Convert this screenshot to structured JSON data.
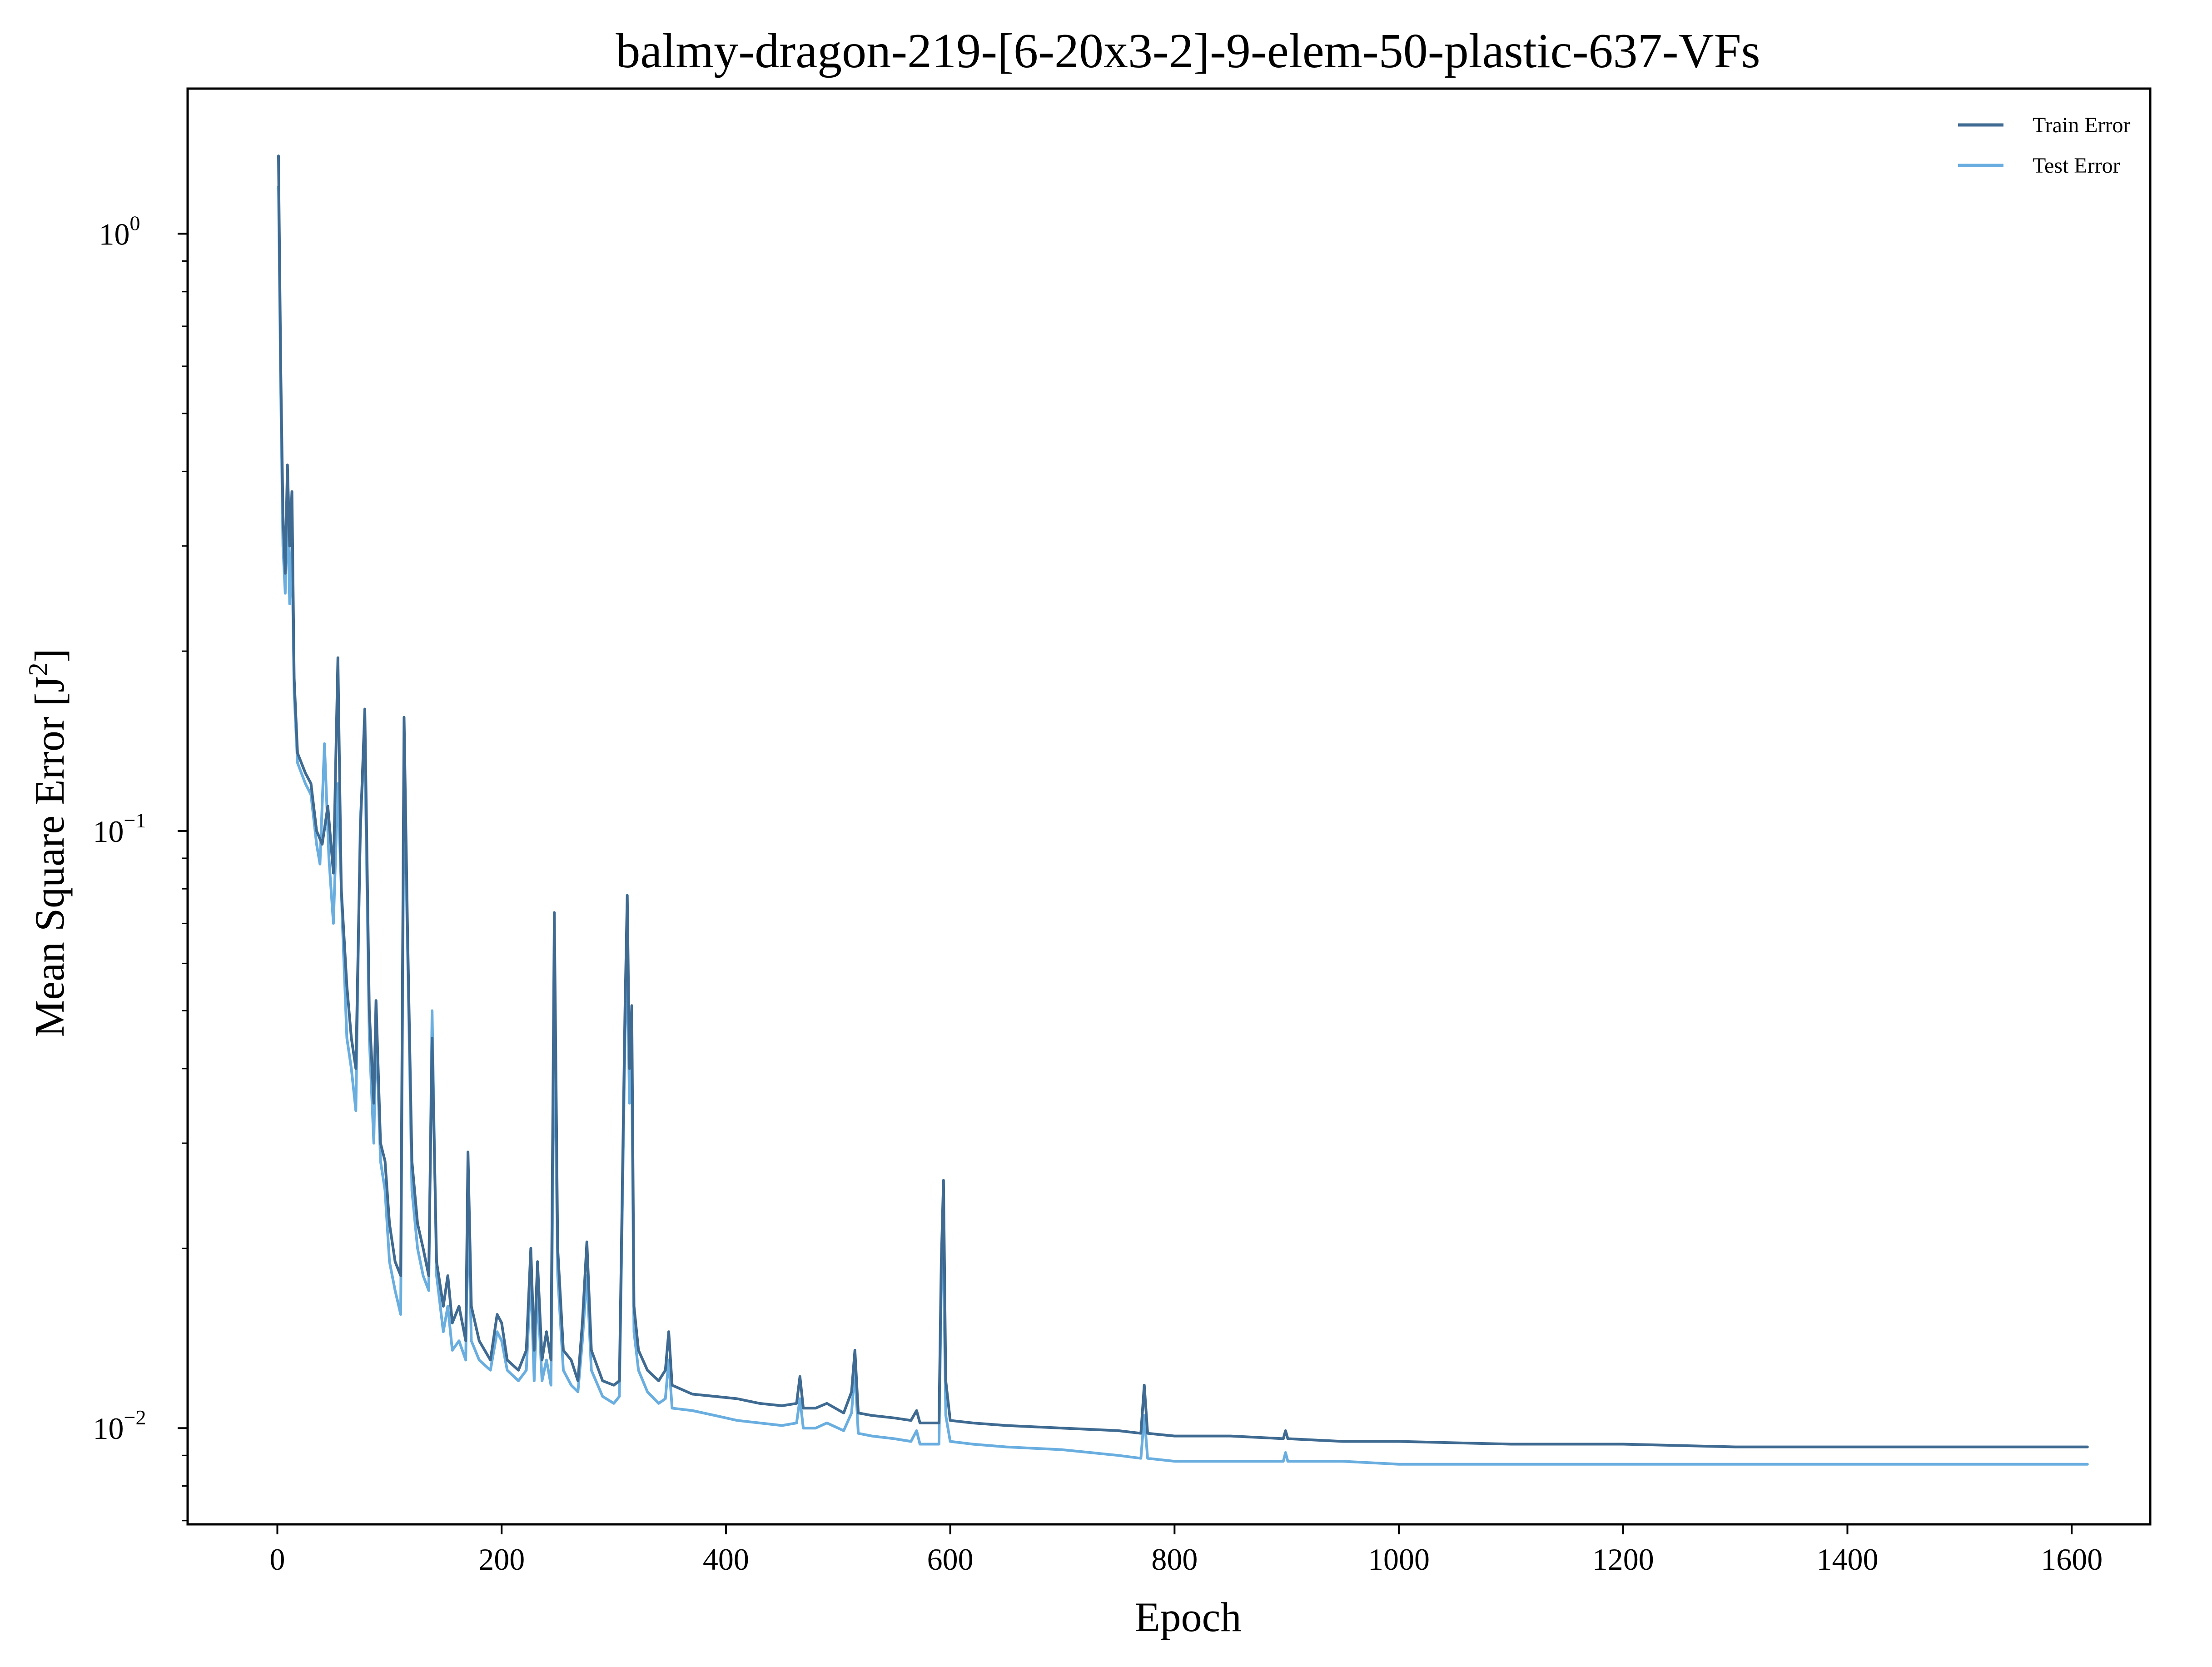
{
  "chart_data": {
    "type": "line",
    "title": "balmy-dragon-219-[6-20x3-2]-9-elem-50-plastic-637-VFs",
    "xlabel": "Epoch",
    "ylabel_main": "Mean Square Error [J",
    "ylabel_sup": "2",
    "ylabel_close": "]",
    "y_scale": "log",
    "xlim": [
      -80,
      1670
    ],
    "ylim": [
      0.0069,
      1.75
    ],
    "x_ticks": [
      0,
      200,
      400,
      600,
      800,
      1000,
      1200,
      1400,
      1600
    ],
    "y_ticks": [
      {
        "value": 1,
        "base": "10",
        "exp": "0"
      },
      {
        "value": 0.1,
        "base": "10",
        "exp": "−1"
      },
      {
        "value": 0.01,
        "base": "10",
        "exp": "−2"
      }
    ],
    "grid": false,
    "legend_position": "top-right",
    "series": [
      {
        "name": "Train Error",
        "color": "#3f6a91",
        "points": [
          [
            1,
            1.35
          ],
          [
            3,
            0.6
          ],
          [
            5,
            0.34
          ],
          [
            7,
            0.27
          ],
          [
            9,
            0.41
          ],
          [
            11,
            0.3
          ],
          [
            13,
            0.37
          ],
          [
            15,
            0.18
          ],
          [
            18,
            0.135
          ],
          [
            25,
            0.125
          ],
          [
            30,
            0.12
          ],
          [
            35,
            0.1
          ],
          [
            40,
            0.095
          ],
          [
            45,
            0.11
          ],
          [
            50,
            0.085
          ],
          [
            54,
            0.195
          ],
          [
            57,
            0.08
          ],
          [
            62,
            0.055
          ],
          [
            66,
            0.045
          ],
          [
            70,
            0.04
          ],
          [
            74,
            0.1
          ],
          [
            78,
            0.16
          ],
          [
            82,
            0.05
          ],
          [
            86,
            0.035
          ],
          [
            88,
            0.052
          ],
          [
            92,
            0.03
          ],
          [
            96,
            0.028
          ],
          [
            100,
            0.022
          ],
          [
            105,
            0.019
          ],
          [
            110,
            0.018
          ],
          [
            113,
            0.155
          ],
          [
            116,
            0.07
          ],
          [
            120,
            0.028
          ],
          [
            125,
            0.022
          ],
          [
            130,
            0.02
          ],
          [
            135,
            0.018
          ],
          [
            138,
            0.045
          ],
          [
            142,
            0.019
          ],
          [
            148,
            0.016
          ],
          [
            152,
            0.018
          ],
          [
            156,
            0.015
          ],
          [
            162,
            0.016
          ],
          [
            168,
            0.014
          ],
          [
            170,
            0.029
          ],
          [
            173,
            0.016
          ],
          [
            180,
            0.014
          ],
          [
            190,
            0.013
          ],
          [
            196,
            0.0155
          ],
          [
            200,
            0.015
          ],
          [
            205,
            0.013
          ],
          [
            215,
            0.0125
          ],
          [
            222,
            0.0135
          ],
          [
            226,
            0.02
          ],
          [
            229,
            0.0135
          ],
          [
            232,
            0.019
          ],
          [
            236,
            0.013
          ],
          [
            240,
            0.0145
          ],
          [
            244,
            0.013
          ],
          [
            247,
            0.073
          ],
          [
            250,
            0.02
          ],
          [
            255,
            0.0135
          ],
          [
            262,
            0.013
          ],
          [
            268,
            0.012
          ],
          [
            272,
            0.015
          ],
          [
            276,
            0.0205
          ],
          [
            280,
            0.0135
          ],
          [
            290,
            0.012
          ],
          [
            300,
            0.0118
          ],
          [
            305,
            0.012
          ],
          [
            310,
            0.05
          ],
          [
            312,
            0.078
          ],
          [
            314,
            0.04
          ],
          [
            316,
            0.051
          ],
          [
            318,
            0.016
          ],
          [
            322,
            0.0135
          ],
          [
            330,
            0.0125
          ],
          [
            340,
            0.012
          ],
          [
            346,
            0.0125
          ],
          [
            349,
            0.0145
          ],
          [
            352,
            0.0118
          ],
          [
            370,
            0.0114
          ],
          [
            390,
            0.0113
          ],
          [
            410,
            0.0112
          ],
          [
            430,
            0.011
          ],
          [
            450,
            0.0109
          ],
          [
            463,
            0.011
          ],
          [
            466,
            0.0122
          ],
          [
            469,
            0.0108
          ],
          [
            480,
            0.0108
          ],
          [
            490,
            0.011
          ],
          [
            505,
            0.0106
          ],
          [
            512,
            0.0115
          ],
          [
            515,
            0.0135
          ],
          [
            518,
            0.0106
          ],
          [
            530,
            0.0105
          ],
          [
            550,
            0.0104
          ],
          [
            565,
            0.0103
          ],
          [
            570,
            0.0107
          ],
          [
            573,
            0.0102
          ],
          [
            590,
            0.0102
          ],
          [
            592,
            0.019
          ],
          [
            594,
            0.026
          ],
          [
            596,
            0.012
          ],
          [
            600,
            0.0103
          ],
          [
            620,
            0.0102
          ],
          [
            650,
            0.0101
          ],
          [
            700,
            0.01
          ],
          [
            750,
            0.0099
          ],
          [
            770,
            0.0098
          ],
          [
            773,
            0.0118
          ],
          [
            776,
            0.0098
          ],
          [
            800,
            0.0097
          ],
          [
            850,
            0.0097
          ],
          [
            897,
            0.0096
          ],
          [
            899,
            0.0099
          ],
          [
            901,
            0.0096
          ],
          [
            950,
            0.0095
          ],
          [
            1000,
            0.0095
          ],
          [
            1100,
            0.0094
          ],
          [
            1200,
            0.0094
          ],
          [
            1300,
            0.0093
          ],
          [
            1400,
            0.0093
          ],
          [
            1500,
            0.0093
          ],
          [
            1614,
            0.0093
          ]
        ]
      },
      {
        "name": "Test Error",
        "color": "#6aaee0",
        "points": [
          [
            1,
            1.2
          ],
          [
            3,
            0.55
          ],
          [
            5,
            0.3
          ],
          [
            7,
            0.25
          ],
          [
            9,
            0.35
          ],
          [
            11,
            0.24
          ],
          [
            13,
            0.3
          ],
          [
            15,
            0.17
          ],
          [
            18,
            0.13
          ],
          [
            25,
            0.12
          ],
          [
            30,
            0.115
          ],
          [
            35,
            0.095
          ],
          [
            38,
            0.088
          ],
          [
            42,
            0.14
          ],
          [
            46,
            0.09
          ],
          [
            50,
            0.07
          ],
          [
            54,
            0.12
          ],
          [
            58,
            0.07
          ],
          [
            62,
            0.045
          ],
          [
            66,
            0.04
          ],
          [
            70,
            0.034
          ],
          [
            74,
            0.105
          ],
          [
            78,
            0.14
          ],
          [
            82,
            0.045
          ],
          [
            86,
            0.03
          ],
          [
            88,
            0.047
          ],
          [
            92,
            0.028
          ],
          [
            96,
            0.025
          ],
          [
            100,
            0.019
          ],
          [
            105,
            0.017
          ],
          [
            110,
            0.0155
          ],
          [
            113,
            0.13
          ],
          [
            116,
            0.065
          ],
          [
            120,
            0.025
          ],
          [
            125,
            0.02
          ],
          [
            130,
            0.018
          ],
          [
            135,
            0.017
          ],
          [
            138,
            0.05
          ],
          [
            142,
            0.018
          ],
          [
            148,
            0.0145
          ],
          [
            152,
            0.016
          ],
          [
            156,
            0.0135
          ],
          [
            162,
            0.014
          ],
          [
            168,
            0.013
          ],
          [
            170,
            0.024
          ],
          [
            173,
            0.014
          ],
          [
            180,
            0.013
          ],
          [
            190,
            0.0125
          ],
          [
            196,
            0.0145
          ],
          [
            200,
            0.014
          ],
          [
            205,
            0.0125
          ],
          [
            215,
            0.012
          ],
          [
            222,
            0.0125
          ],
          [
            226,
            0.018
          ],
          [
            229,
            0.012
          ],
          [
            232,
            0.017
          ],
          [
            236,
            0.012
          ],
          [
            240,
            0.013
          ],
          [
            244,
            0.0118
          ],
          [
            247,
            0.05
          ],
          [
            250,
            0.018
          ],
          [
            255,
            0.0125
          ],
          [
            262,
            0.0118
          ],
          [
            268,
            0.0115
          ],
          [
            272,
            0.014
          ],
          [
            276,
            0.018
          ],
          [
            280,
            0.0125
          ],
          [
            290,
            0.0113
          ],
          [
            300,
            0.011
          ],
          [
            305,
            0.0113
          ],
          [
            310,
            0.045
          ],
          [
            312,
            0.06
          ],
          [
            314,
            0.035
          ],
          [
            316,
            0.04
          ],
          [
            318,
            0.0145
          ],
          [
            322,
            0.0125
          ],
          [
            330,
            0.0115
          ],
          [
            340,
            0.011
          ],
          [
            346,
            0.0112
          ],
          [
            349,
            0.013
          ],
          [
            352,
            0.0108
          ],
          [
            370,
            0.0107
          ],
          [
            390,
            0.0105
          ],
          [
            410,
            0.0103
          ],
          [
            430,
            0.0102
          ],
          [
            450,
            0.0101
          ],
          [
            463,
            0.0102
          ],
          [
            466,
            0.0112
          ],
          [
            469,
            0.01
          ],
          [
            480,
            0.01
          ],
          [
            490,
            0.0102
          ],
          [
            505,
            0.0099
          ],
          [
            512,
            0.0106
          ],
          [
            515,
            0.0125
          ],
          [
            518,
            0.0098
          ],
          [
            530,
            0.0097
          ],
          [
            550,
            0.0096
          ],
          [
            565,
            0.0095
          ],
          [
            570,
            0.0099
          ],
          [
            573,
            0.0094
          ],
          [
            590,
            0.0094
          ],
          [
            592,
            0.0175
          ],
          [
            594,
            0.019
          ],
          [
            596,
            0.0105
          ],
          [
            600,
            0.0095
          ],
          [
            620,
            0.0094
          ],
          [
            650,
            0.0093
          ],
          [
            700,
            0.0092
          ],
          [
            750,
            0.009
          ],
          [
            770,
            0.0089
          ],
          [
            773,
            0.0105
          ],
          [
            776,
            0.0089
          ],
          [
            800,
            0.0088
          ],
          [
            850,
            0.0088
          ],
          [
            897,
            0.0088
          ],
          [
            899,
            0.0091
          ],
          [
            901,
            0.0088
          ],
          [
            950,
            0.0088
          ],
          [
            1000,
            0.0087
          ],
          [
            1100,
            0.0087
          ],
          [
            1200,
            0.0087
          ],
          [
            1300,
            0.0087
          ],
          [
            1400,
            0.0087
          ],
          [
            1500,
            0.0087
          ],
          [
            1614,
            0.0087
          ]
        ]
      }
    ]
  }
}
